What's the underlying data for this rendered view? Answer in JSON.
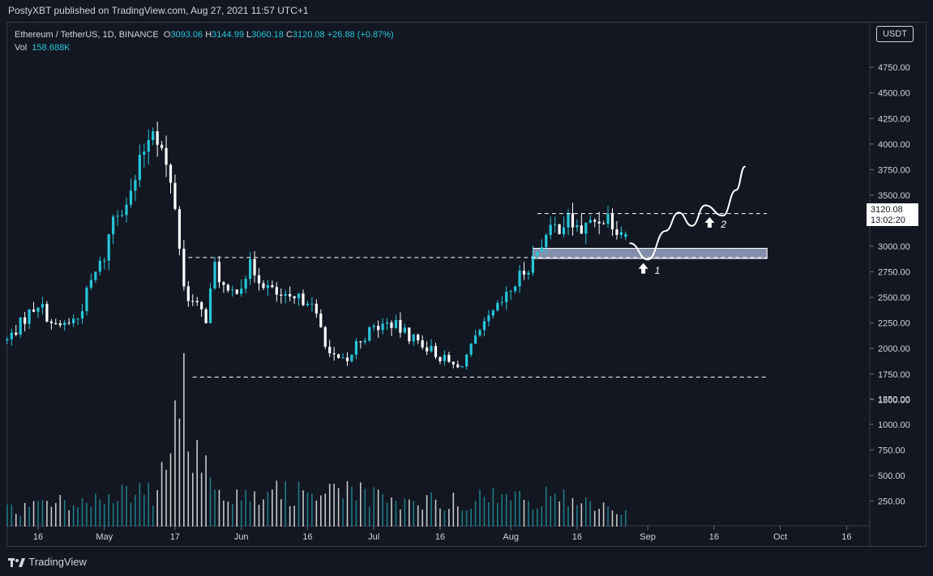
{
  "header": {
    "published_by": "PostyXBT published on TradingView.com, Aug 27, 2021 11:57 UTC+1"
  },
  "legend": {
    "symbol": "Ethereum / TetherUS, 1D, BINANCE",
    "o_label": "O",
    "o_value": "3093.06",
    "h_label": "H",
    "h_value": "3144.99",
    "l_label": "L",
    "l_value": "3060.18",
    "c_label": "C",
    "c_value": "3120.08",
    "change": "+26.88 (+0.87%)",
    "vol_label": "Vol",
    "vol_value": "158.688K"
  },
  "currency_badge": "USDT",
  "last_price": {
    "value": "3120.08",
    "countdown": "13:02:20"
  },
  "footer": {
    "brand": "TradingView"
  },
  "colors": {
    "background": "#131722",
    "up": "#26c6da",
    "down": "#ffffff",
    "volume_up": "#1e7a86",
    "volume_down": "#c8c8c8"
  },
  "chart_data": {
    "type": "candlestick",
    "price_axis": {
      "ticks": [
        "4750.00",
        "4500.00",
        "4250.00",
        "4000.00",
        "3750.00",
        "3500.00",
        "3250.00",
        "3000.00",
        "2750.00",
        "2500.00",
        "2250.00",
        "2000.00",
        "1750.00",
        "1500.00",
        "1250.00",
        "1000.00",
        "750.00",
        "500.00",
        "250.00"
      ]
    },
    "volume_axis": {
      "ticks": [
        1250,
        1000,
        750,
        500,
        250
      ]
    },
    "price_ticks": [
      4750,
      4500,
      4250,
      4000,
      3750,
      3500,
      3250,
      3000,
      2750,
      2500,
      2250,
      2000,
      1750,
      1500
    ],
    "time_axis": [
      {
        "label": "16",
        "date": "2021-04-16"
      },
      {
        "label": "May",
        "date": "2021-05-01"
      },
      {
        "label": "17",
        "date": "2021-05-17"
      },
      {
        "label": "Jun",
        "date": "2021-06-01"
      },
      {
        "label": "16",
        "date": "2021-06-16"
      },
      {
        "label": "Jul",
        "date": "2021-07-01"
      },
      {
        "label": "16",
        "date": "2021-07-16"
      },
      {
        "label": "Aug",
        "date": "2021-08-01"
      },
      {
        "label": "16",
        "date": "2021-08-16"
      },
      {
        "label": "Sep",
        "date": "2021-09-01"
      },
      {
        "label": "16",
        "date": "2021-09-16"
      },
      {
        "label": "Oct",
        "date": "2021-10-01"
      },
      {
        "label": "16",
        "date": "2021-10-16"
      }
    ],
    "anchors": [
      [
        "2021-04-09",
        2080
      ],
      [
        "2021-04-14",
        2350
      ],
      [
        "2021-04-16",
        2450
      ],
      [
        "2021-04-20",
        2200
      ],
      [
        "2021-04-25",
        2300
      ],
      [
        "2021-04-28",
        2650
      ],
      [
        "2021-05-01",
        2900
      ],
      [
        "2021-05-03",
        3300
      ],
      [
        "2021-05-07",
        3500
      ],
      [
        "2021-05-10",
        3950
      ],
      [
        "2021-05-12",
        4200
      ],
      [
        "2021-05-14",
        3950
      ],
      [
        "2021-05-17",
        3400
      ],
      [
        "2021-05-19",
        2600
      ],
      [
        "2021-05-21",
        2450
      ],
      [
        "2021-05-24",
        2300
      ],
      [
        "2021-05-26",
        2800
      ],
      [
        "2021-05-29",
        2500
      ],
      [
        "2021-06-01",
        2650
      ],
      [
        "2021-06-03",
        2800
      ],
      [
        "2021-06-05",
        2700
      ],
      [
        "2021-06-08",
        2550
      ],
      [
        "2021-06-12",
        2450
      ],
      [
        "2021-06-16",
        2500
      ],
      [
        "2021-06-19",
        2200
      ],
      [
        "2021-06-21",
        1950
      ],
      [
        "2021-06-22",
        1900
      ],
      [
        "2021-06-25",
        1850
      ],
      [
        "2021-06-27",
        2050
      ],
      [
        "2021-07-01",
        2200
      ],
      [
        "2021-07-05",
        2250
      ],
      [
        "2021-07-08",
        2150
      ],
      [
        "2021-07-12",
        2050
      ],
      [
        "2021-07-15",
        1950
      ],
      [
        "2021-07-20",
        1800
      ],
      [
        "2021-07-23",
        2000
      ],
      [
        "2021-07-27",
        2280
      ],
      [
        "2021-07-31",
        2500
      ],
      [
        "2021-08-03",
        2700
      ],
      [
        "2021-08-06",
        2880
      ],
      [
        "2021-08-08",
        3050
      ],
      [
        "2021-08-11",
        3180
      ],
      [
        "2021-08-14",
        3250
      ],
      [
        "2021-08-17",
        3150
      ],
      [
        "2021-08-20",
        3250
      ],
      [
        "2021-08-23",
        3300
      ],
      [
        "2021-08-25",
        3200
      ],
      [
        "2021-08-27",
        3120
      ]
    ],
    "volume_anchors": [
      [
        "2021-04-09",
        160
      ],
      [
        "2021-04-20",
        250
      ],
      [
        "2021-05-01",
        280
      ],
      [
        "2021-05-12",
        350
      ],
      [
        "2021-05-19",
        1270
      ],
      [
        "2021-05-22",
        700
      ],
      [
        "2021-05-28",
        400
      ],
      [
        "2021-06-10",
        330
      ],
      [
        "2021-06-22",
        420
      ],
      [
        "2021-07-05",
        230
      ],
      [
        "2021-07-20",
        270
      ],
      [
        "2021-08-05",
        300
      ],
      [
        "2021-08-15",
        280
      ],
      [
        "2021-08-27",
        160
      ]
    ],
    "last_candle": {
      "date": "2021-08-27",
      "open": 3093.06,
      "high": 3144.99,
      "low": 3060.18,
      "close": 3120.08,
      "volume": "158.688K"
    },
    "annotations": {
      "upper_resistance": {
        "price": 3320,
        "from": "2021-08-07",
        "to": "2021-09-28"
      },
      "mid_level": {
        "price": 2890,
        "from": "2021-05-20",
        "to": "2021-09-28"
      },
      "lower_support": {
        "price": 1720,
        "from": "2021-05-21",
        "to": "2021-09-28"
      },
      "support_zone": {
        "top": 2980,
        "bottom": 2880,
        "from": "2021-08-06",
        "to": "2021-09-28"
      },
      "projection": [
        [
          "2021-08-28",
          3030
        ],
        [
          "2021-09-01",
          2870
        ],
        [
          "2021-09-05",
          3150
        ],
        [
          "2021-09-08",
          3330
        ],
        [
          "2021-09-11",
          3200
        ],
        [
          "2021-09-14",
          3400
        ],
        [
          "2021-09-18",
          3300
        ],
        [
          "2021-09-21",
          3550
        ],
        [
          "2021-09-23",
          3780
        ]
      ],
      "markers": [
        {
          "label": "1",
          "date": "2021-08-31",
          "price": 2780
        },
        {
          "label": "2",
          "date": "2021-09-15",
          "price": 3230
        }
      ]
    }
  }
}
